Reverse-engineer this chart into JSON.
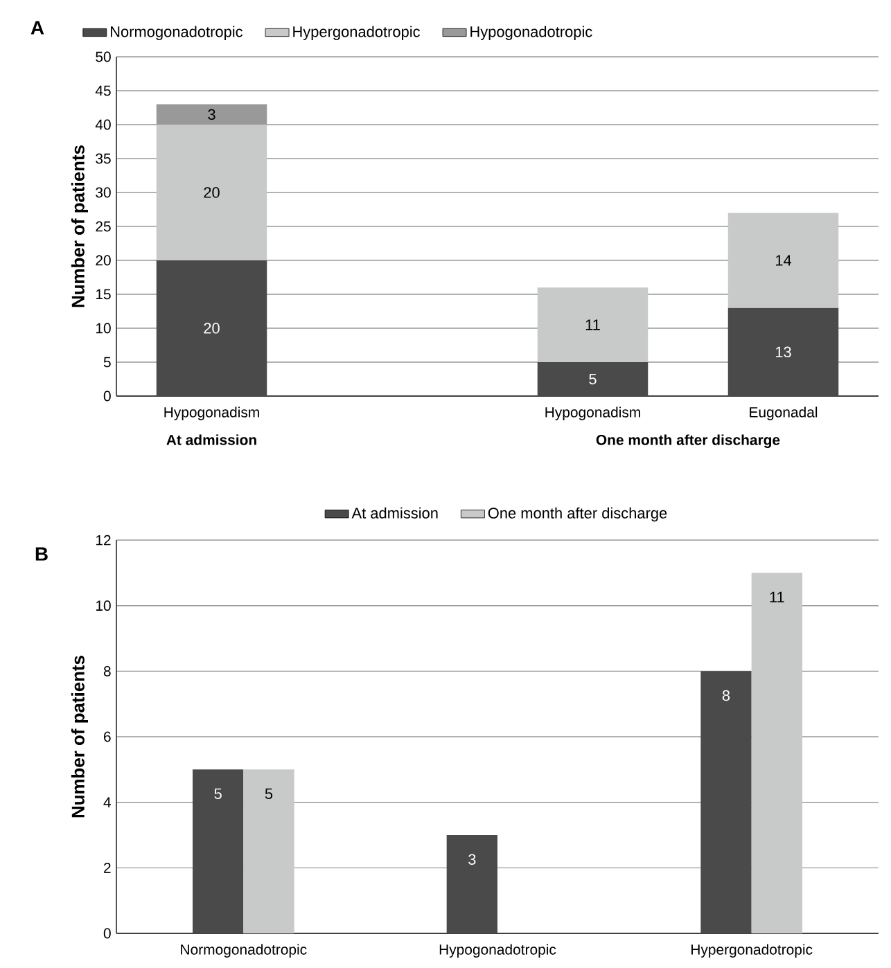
{
  "chart_data": [
    {
      "type": "bar",
      "title": "A",
      "ylabel": "Number of patients",
      "stacked": true,
      "categories": [
        "Hypogonadism",
        null,
        "Hypogonadism",
        "Eugonadal"
      ],
      "series": [
        {
          "name": "Normogonadotropic",
          "color": "#4a4a4a",
          "values": [
            20,
            null,
            5,
            13
          ]
        },
        {
          "name": "Hypergonadotropic",
          "color": "#c8c9c9",
          "values": [
            20,
            null,
            11,
            14
          ]
        },
        {
          "name": "Hypogonadotropic",
          "color": "#999999",
          "values": [
            3,
            null,
            null,
            null
          ]
        }
      ],
      "ylim": [
        0,
        50
      ],
      "yticks": [
        0,
        5,
        10,
        15,
        20,
        25,
        30,
        35,
        40,
        45,
        50
      ],
      "grid": "y",
      "legend": "top left",
      "data_labels": true,
      "annotations": [
        "At admission",
        "One month after discharge"
      ]
    },
    {
      "type": "bar",
      "title": "B",
      "ylabel": "Number of patients",
      "categories": [
        "Normogonadotropic",
        "Hypogonadotropic",
        "Hypergonadotropic"
      ],
      "series": [
        {
          "name": "At admission",
          "color": "#4a4a4a",
          "values": [
            5,
            3,
            8
          ]
        },
        {
          "name": "One month after discharge",
          "color": "#c8c9c9",
          "values": [
            5,
            null,
            11
          ]
        }
      ],
      "ylim": [
        0,
        12
      ],
      "yticks": [
        0,
        2,
        4,
        6,
        8,
        10,
        12
      ],
      "grid": "y",
      "legend": "top",
      "data_labels": true
    }
  ]
}
